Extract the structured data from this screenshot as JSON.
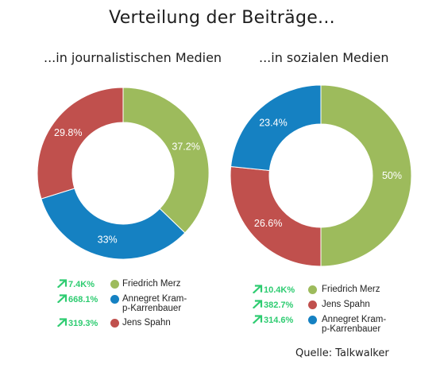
{
  "title": "Verteilung der Beiträge...",
  "source": "Quelle: Talkwalker",
  "colors": {
    "green": "#9dbb5c",
    "blue": "#1581c2",
    "red": "#c0504d",
    "growth": "#2ecc71"
  },
  "chart_data": [
    {
      "type": "pie",
      "subtitle": "...in journalistischen Medien",
      "slices": [
        {
          "name": "Friedrich Merz",
          "value": 37.2,
          "label": "37.2%",
          "color": "#9dbb5c"
        },
        {
          "name": "Annegret Kramp-Karrenbauer",
          "value": 33,
          "label": "33%",
          "color": "#1581c2"
        },
        {
          "name": "Jens Spahn",
          "value": 29.8,
          "label": "29.8%",
          "color": "#c0504d"
        }
      ],
      "legend": [
        {
          "growth": "7.4K%",
          "name": "Friedrich Merz",
          "color": "#9dbb5c"
        },
        {
          "growth": "668.1%",
          "name": "Annegret Kramp-Karrenbauer",
          "color": "#1581c2"
        },
        {
          "growth": "319.3%",
          "name": "Jens Spahn",
          "color": "#c0504d"
        }
      ]
    },
    {
      "type": "pie",
      "subtitle": "...in sozialen Medien",
      "slices": [
        {
          "name": "Friedrich Merz",
          "value": 50,
          "label": "50%",
          "color": "#9dbb5c"
        },
        {
          "name": "Jens Spahn",
          "value": 26.6,
          "label": "26.6%",
          "color": "#c0504d"
        },
        {
          "name": "Annegret Kramp-Karrenbauer",
          "value": 23.4,
          "label": "23.4%",
          "color": "#1581c2"
        }
      ],
      "legend": [
        {
          "growth": "10.4K%",
          "name": "Friedrich Merz",
          "color": "#9dbb5c"
        },
        {
          "growth": "382.7%",
          "name": "Jens Spahn",
          "color": "#c0504d"
        },
        {
          "growth": "314.6%",
          "name": "Annegret Kramp-Karrenbauer",
          "color": "#1581c2"
        }
      ]
    }
  ]
}
